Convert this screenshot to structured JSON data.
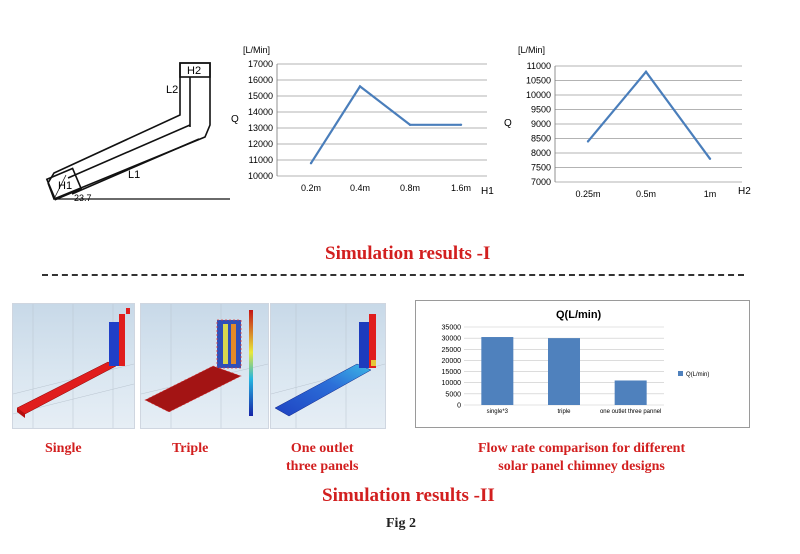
{
  "geometry": {
    "labels": {
      "h1": "H1",
      "h2": "H2",
      "l1": "L1",
      "l2": "L2",
      "angle": "23.7"
    }
  },
  "chart_h1": {
    "ylabel_unit": "[L/Min]",
    "ylabel": "Q",
    "xlabel": "H1",
    "yticks": [
      "10000",
      "11000",
      "12000",
      "13000",
      "14000",
      "15000",
      "16000",
      "17000"
    ]
  },
  "chart_h2": {
    "ylabel_unit": "[L/Min]",
    "ylabel": "Q",
    "xlabel": "H2",
    "yticks": [
      "7000",
      "7500",
      "8000",
      "8500",
      "9000",
      "9500",
      "10000",
      "10500",
      "11000"
    ]
  },
  "bar": {
    "title": "Q(L/min)",
    "legend": "Q(L/min)",
    "yticks": [
      "0",
      "5000",
      "10000",
      "15000",
      "20000",
      "25000",
      "30000",
      "35000"
    ]
  },
  "captions": {
    "results_1": "Simulation results -I",
    "results_2": "Simulation results -II",
    "single": "Single",
    "triple": "Triple",
    "one_outlet_line1": "One outlet",
    "one_outlet_line2": "three panels",
    "flow_line1": "Flow rate comparison  for different",
    "flow_line2": "solar panel chimney designs",
    "fig": "Fig 2"
  },
  "colors": {
    "line": "#4a7ebb",
    "bar": "#4f81bd",
    "caption": "#d21f1f"
  },
  "chart_data": [
    {
      "type": "line",
      "categories": [
        "0.2m",
        "0.4m",
        "0.8m",
        "1.6m"
      ],
      "series": [
        {
          "values": [
            10800,
            15600,
            13200,
            13200
          ]
        }
      ],
      "ylabel": "Q",
      "xlabel": "H1",
      "ylim": [
        10000,
        17000
      ],
      "grid": true
    },
    {
      "type": "line",
      "categories": [
        "0.25m",
        "0.5m",
        "1m"
      ],
      "series": [
        {
          "values": [
            8400,
            10800,
            7800
          ]
        }
      ],
      "ylabel": "Q",
      "xlabel": "H2",
      "ylim": [
        7000,
        11000
      ],
      "grid": true
    },
    {
      "type": "bar",
      "title": "Q(L/min)",
      "categories": [
        "single*3",
        "triple",
        "one outlet three pannel"
      ],
      "series": [
        {
          "name": "Q(L/min)",
          "values": [
            30500,
            30000,
            11000
          ]
        }
      ],
      "ylim": [
        0,
        35000
      ],
      "grid": true,
      "legend": "right"
    }
  ]
}
